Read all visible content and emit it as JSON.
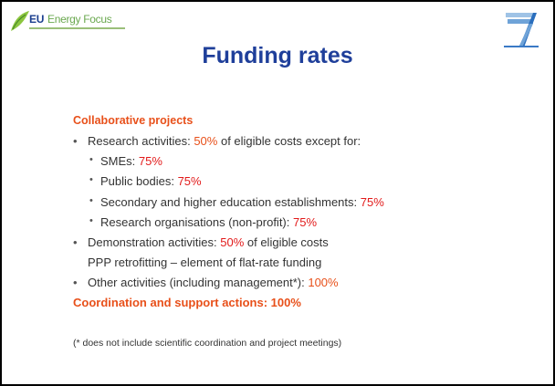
{
  "header": {
    "logo_text_1": "EU",
    "logo_text_2": "Energy Focus",
    "title": "Funding rates"
  },
  "content": {
    "heading": "Collaborative projects",
    "research": [
      "Research activities: ",
      "50%",
      " of eligible costs except for:"
    ],
    "sub_items": [
      [
        "SMEs: ",
        "75%"
      ],
      [
        "Public bodies: ",
        "75%"
      ],
      [
        "Secondary and higher education establishments: ",
        "75%"
      ],
      [
        "Research organisations (non-profit): ",
        "75%"
      ]
    ],
    "demonstration": [
      "Demonstration activities: ",
      "50%",
      " of eligible costs"
    ],
    "ppp": "PPP retrofitting – element of flat-rate funding",
    "other": [
      "Other activities (including management*): ",
      "100%"
    ],
    "coordination": "Coordination and support actions: 100%",
    "footnote": "(* does not include scientific coordination and project meetings)"
  }
}
